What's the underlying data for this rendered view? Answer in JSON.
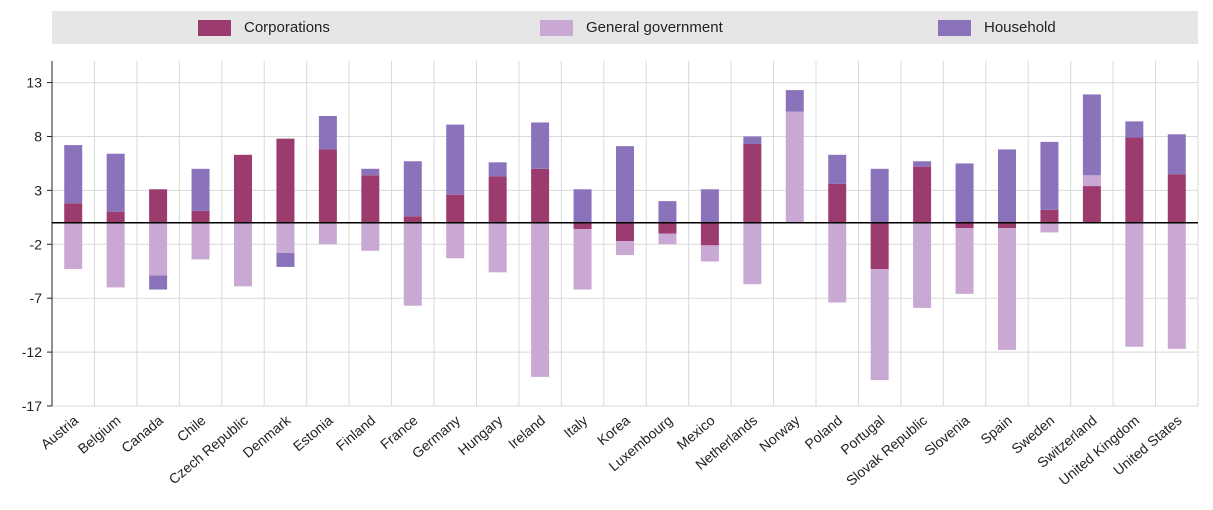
{
  "chart_data": {
    "type": "bar",
    "stacked": true,
    "legend_position": "top",
    "grid": true,
    "ylim": [
      -17,
      15
    ],
    "yticks": [
      13,
      8,
      3,
      -2,
      -7,
      -12,
      -17
    ],
    "categories": [
      "Austria",
      "Belgium",
      "Canada",
      "Chile",
      "Czech Republic",
      "Denmark",
      "Estonia",
      "Finland",
      "France",
      "Germany",
      "Hungary",
      "Ireland",
      "Italy",
      "Korea",
      "Luxembourg",
      "Mexico",
      "Netherlands",
      "Norway",
      "Poland",
      "Portugal",
      "Slovak Republic",
      "Slovenia",
      "Spain",
      "Sweden",
      "Switzerland",
      "United Kingdom",
      "United States"
    ],
    "series": [
      {
        "name": "Corporations",
        "color": "#9b3b6e",
        "values": [
          1.8,
          1.0,
          3.1,
          1.1,
          6.3,
          7.8,
          6.8,
          4.4,
          0.6,
          2.6,
          4.3,
          5.0,
          -0.6,
          -1.7,
          -1.0,
          -2.1,
          7.3,
          0,
          3.6,
          -4.3,
          5.2,
          -0.5,
          -0.5,
          1.2,
          3.4,
          7.9,
          4.5
        ],
        "color_legend": "#9b3b6e"
      },
      {
        "name": "General government",
        "color": "#c9a9d3",
        "values": [
          -4.3,
          -6.0,
          -4.9,
          -3.4,
          -5.9,
          -2.8,
          -2.0,
          -2.6,
          -7.7,
          -3.3,
          -4.6,
          -14.3,
          -5.6,
          -1.3,
          -1.0,
          -1.5,
          -5.7,
          10.3,
          -7.4,
          -10.3,
          -7.9,
          -6.1,
          -11.3,
          -0.9,
          1.0,
          -11.5,
          -11.7
        ]
      },
      {
        "name": "Household",
        "color": "#8b73bb",
        "values": [
          5.4,
          5.4,
          -1.3,
          3.9,
          0,
          -1.3,
          3.1,
          0.6,
          5.1,
          6.5,
          1.3,
          4.3,
          3.1,
          7.1,
          2.0,
          3.1,
          0.7,
          2.0,
          2.7,
          5.0,
          0.5,
          5.5,
          6.8,
          6.3,
          7.5,
          1.5,
          3.7
        ]
      }
    ],
    "title": "",
    "xlabel": "",
    "ylabel": ""
  }
}
